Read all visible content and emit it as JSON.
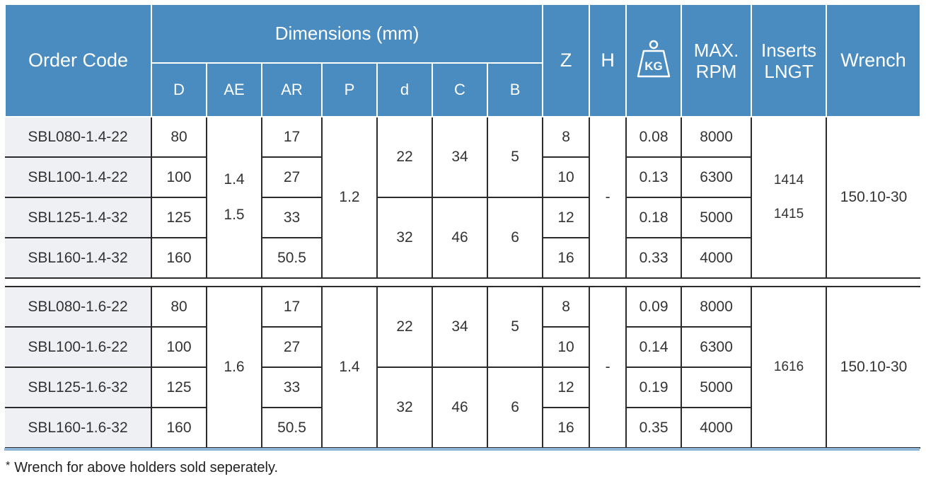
{
  "header": {
    "order_code": "Order Code",
    "dimensions": "Dimensions (mm)",
    "cols": [
      "D",
      "AE",
      "AR",
      "P",
      "d",
      "C",
      "B"
    ],
    "z": "Z",
    "h": "H",
    "kg_icon": "weight-kg-icon",
    "kg_label": "KG",
    "max": "MAX.",
    "rpm": "RPM",
    "inserts": "Inserts",
    "lngt": "LNGT",
    "wrench": "Wrench"
  },
  "group1": {
    "ae": [
      "1.4",
      "1.5"
    ],
    "p": "1.2",
    "h": "-",
    "inserts": [
      "1414",
      "1415"
    ],
    "wrench": "150.10-30",
    "d_top": "22",
    "c_top": "34",
    "b_top": "5",
    "d_bot": "32",
    "c_bot": "46",
    "b_bot": "6",
    "rows": [
      {
        "code": "SBL080-1.4-22",
        "D": "80",
        "AR": "17",
        "Z": "8",
        "kg": "0.08",
        "rpm": "8000"
      },
      {
        "code": "SBL100-1.4-22",
        "D": "100",
        "AR": "27",
        "Z": "10",
        "kg": "0.13",
        "rpm": "6300"
      },
      {
        "code": "SBL125-1.4-32",
        "D": "125",
        "AR": "33",
        "Z": "12",
        "kg": "0.18",
        "rpm": "5000"
      },
      {
        "code": "SBL160-1.4-32",
        "D": "160",
        "AR": "50.5",
        "Z": "16",
        "kg": "0.33",
        "rpm": "4000"
      }
    ]
  },
  "group2": {
    "ae": "1.6",
    "p": "1.4",
    "h": "-",
    "inserts": "1616",
    "wrench": "150.10-30",
    "d_top": "22",
    "c_top": "34",
    "b_top": "5",
    "d_bot": "32",
    "c_bot": "46",
    "b_bot": "6",
    "rows": [
      {
        "code": "SBL080-1.6-22",
        "D": "80",
        "AR": "17",
        "Z": "8",
        "kg": "0.09",
        "rpm": "8000"
      },
      {
        "code": "SBL100-1.6-22",
        "D": "100",
        "AR": "27",
        "Z": "10",
        "kg": "0.14",
        "rpm": "6300"
      },
      {
        "code": "SBL125-1.6-32",
        "D": "125",
        "AR": "33",
        "Z": "12",
        "kg": "0.19",
        "rpm": "5000"
      },
      {
        "code": "SBL160-1.6-32",
        "D": "160",
        "AR": "50.5",
        "Z": "16",
        "kg": "0.35",
        "rpm": "4000"
      }
    ]
  },
  "note": {
    "star": "*",
    "text": "Wrench for above holders sold seperately."
  },
  "colors": {
    "header_bg": "#4a8cc0",
    "code_bg": "#eef0f3",
    "rule": "#8fb6d6"
  }
}
